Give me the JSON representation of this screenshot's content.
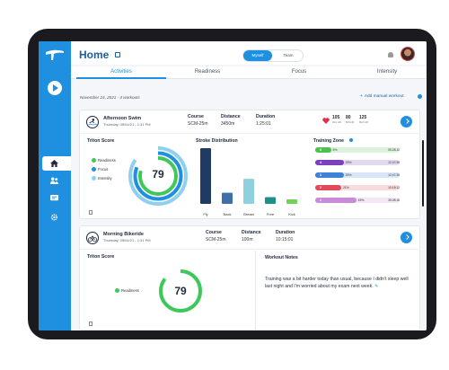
{
  "header": {
    "title": "Home",
    "toggle": {
      "active": "Myself",
      "inactive": "Team"
    }
  },
  "tabs": [
    {
      "label": "Activities",
      "active": true
    },
    {
      "label": "Readiness",
      "active": false
    },
    {
      "label": "Focus",
      "active": false
    },
    {
      "label": "Intensity",
      "active": false
    }
  ],
  "date_line": "November 24,  2021 - 4 workouts",
  "add_manual": "Add manual workout",
  "workouts": [
    {
      "title": "Afternoon Swim",
      "subtitle": "Thursday, 05/04/21 - 1:31 PM",
      "course_label": "Course",
      "course": "SCM-25m",
      "distance_label": "Distance",
      "distance": "3450m",
      "duration_label": "Duration",
      "duration": "1:25:01",
      "hr": [
        {
          "value": "105",
          "label": "AVG HR"
        },
        {
          "value": "80",
          "label": "MIN HR"
        },
        {
          "value": "125",
          "label": "MAX HR"
        }
      ],
      "triton_title": "Triton Score",
      "triton_score": "79",
      "triton_legend": [
        "Readiness",
        "Focus",
        "Intensity"
      ],
      "stroke_title": "Stroke Distribution",
      "strokes": [
        {
          "label": "Fly",
          "value": 100,
          "color": "#1f3b63"
        },
        {
          "label": "Back",
          "value": 20,
          "color": "#3f6ea8"
        },
        {
          "label": "Breast",
          "value": 45,
          "color": "#8fd0df"
        },
        {
          "label": "Free",
          "value": 12,
          "color": "#1f8f8a"
        },
        {
          "label": "Kick",
          "value": 8,
          "color": "#6fd35a"
        }
      ],
      "zone_title": "Training Zone",
      "zones": [
        {
          "zone": "5",
          "pct": "5%",
          "time": "05:28:12",
          "color": "#4fbf4f",
          "fraction": 0.05
        },
        {
          "zone": "4",
          "pct": "25%",
          "time": "12:47:28",
          "color": "#7b3fbf",
          "fraction": 0.25
        },
        {
          "zone": "3",
          "pct": "25%",
          "time": "12:47:28",
          "color": "#3f82d9",
          "fraction": 0.25
        },
        {
          "zone": "2",
          "pct": "21%",
          "time": "10:18:12",
          "color": "#e24a5a",
          "fraction": 0.21
        },
        {
          "zone": "1",
          "pct": "45%",
          "time": "35:08:18",
          "color": "#c98bd9",
          "fraction": 0.45
        }
      ]
    },
    {
      "title": "Morning Bikeride",
      "subtitle": "Thursday, 05/04/21 - 1:31 PM",
      "course_label": "Course",
      "course": "SCM-25m",
      "distance_label": "Distance",
      "distance": "100m",
      "duration_label": "Duration",
      "duration": "10:15:01",
      "triton_title": "Triton Score",
      "triton_score": "79",
      "triton_legend": [
        "Readiness"
      ],
      "notes_title": "Workout Notes",
      "notes": "Training was a bit harder today than usual, because I didn't sleep well last night and I'm worried about my exam next week."
    }
  ],
  "colors": {
    "accent": "#1f8fe0",
    "brand_dark": "#1a5fa8",
    "readiness": "#3fc85a",
    "focus": "#1f8fe0",
    "intensity": "#8fd0ee"
  },
  "icons": [
    "triton-logo-icon",
    "play-icon",
    "home-icon",
    "users-icon",
    "chat-icon",
    "gear-icon",
    "calendar-icon",
    "bell-icon",
    "swim-icon",
    "bike-icon",
    "heart-icon",
    "trash-icon",
    "edit-icon",
    "arrow-right-icon"
  ]
}
